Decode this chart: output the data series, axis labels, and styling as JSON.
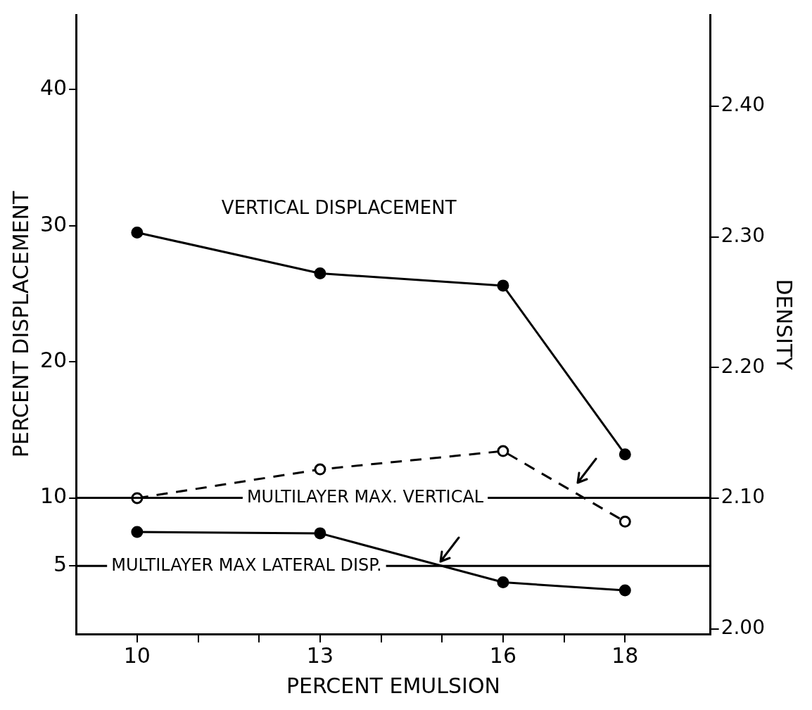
{
  "chart_data": {
    "type": "line",
    "xlabel": "PERCENT EMULSION",
    "ylabel": "PERCENT DISPLACEMENT",
    "y2label": "DENSITY",
    "x": [
      10,
      13,
      16,
      18
    ],
    "series": [
      {
        "name": "VERTICAL DISPLACEMENT",
        "color": "#000000",
        "values": [
          29.5,
          26.5,
          25.6,
          13.2
        ]
      },
      {
        "color": "#000000",
        "values": [
          7.5,
          7.4,
          3.8,
          3.2
        ]
      },
      {
        "color": "#000000",
        "axis": "y2",
        "line_style": "dashed",
        "values": [
          2.1,
          2.122,
          2.136,
          2.082
        ]
      }
    ],
    "xlim": [
      9,
      19.4
    ],
    "xticks": [
      10,
      {
        "value": 11,
        "label": null
      },
      {
        "value": 12,
        "label": null
      },
      13,
      {
        "value": 14,
        "label": null
      },
      {
        "value": 15,
        "label": null
      },
      16,
      {
        "value": 17,
        "label": null
      },
      18
    ],
    "ylim": [
      0,
      45.5
    ],
    "yticks": [
      5,
      10,
      20,
      30,
      40
    ],
    "y2lim": [
      1.996,
      2.47
    ],
    "y2ticks": [
      {
        "value": 2,
        "label": "2.00"
      },
      {
        "value": 2.1,
        "label": "2.10"
      },
      {
        "value": 2.2,
        "label": "2.20"
      },
      {
        "value": 2.3,
        "label": "2.30"
      },
      {
        "value": 2.4,
        "label": "2.40"
      }
    ],
    "ref_lines": [
      {
        "axis": "y",
        "value": 10,
        "label": "MULTILAYER MAX. VERTICAL"
      },
      {
        "axis": "y",
        "value": 5,
        "label": "MULTILAYER MAX LATERAL DISP."
      }
    ],
    "grid": false,
    "legend": false,
    "marker": "circle"
  }
}
